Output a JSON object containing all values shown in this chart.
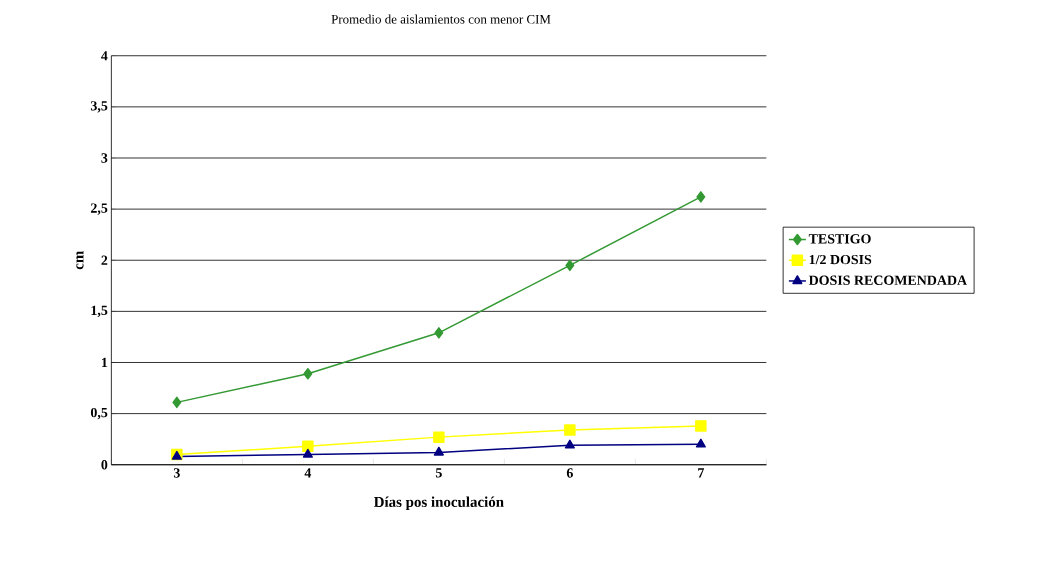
{
  "chart_data": {
    "type": "line",
    "title": "Promedio de aislamientos  con menor CIM",
    "xlabel": "Días pos inoculación",
    "ylabel": "cm",
    "categories": [
      "3",
      "4",
      "5",
      "6",
      "7"
    ],
    "ylim": [
      0,
      4
    ],
    "yticks": [
      0,
      {
        "value": 0.5,
        "label": "0,5"
      },
      1,
      {
        "value": 1.5,
        "label": "1,5"
      },
      2,
      {
        "value": 2.5,
        "label": "2,5"
      },
      3,
      {
        "value": 3.5,
        "label": "3,5"
      },
      4
    ],
    "grid": "y",
    "legend": "right",
    "line_style": "solid",
    "series": [
      {
        "name": "TESTIGO",
        "color": "#339933",
        "marker": "diamond",
        "values": [
          0.61,
          0.89,
          1.29,
          1.95,
          2.62
        ]
      },
      {
        "name": "1/2 DOSIS",
        "color": "#ffff00",
        "marker": "square",
        "values": [
          0.1,
          0.18,
          0.27,
          0.34,
          0.38
        ]
      },
      {
        "name": "DOSIS RECOMENDADA",
        "color": "#000080",
        "marker": "triangle",
        "values": [
          0.08,
          0.1,
          0.12,
          0.19,
          0.2
        ]
      }
    ]
  }
}
